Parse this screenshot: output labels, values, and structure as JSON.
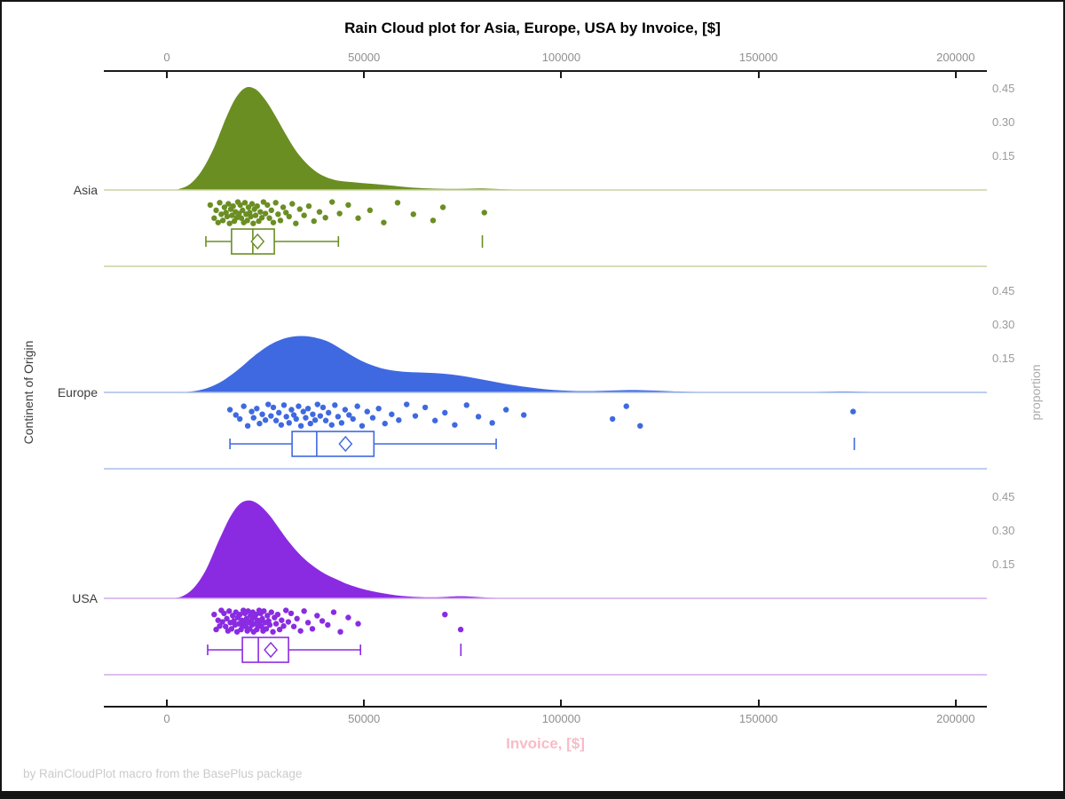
{
  "title": "Rain Cloud plot for Asia, Europe, USA by Invoice, [$]",
  "footer": "by RainCloudPlot macro from the BasePlus package",
  "x_axis": {
    "label": "Invoice, [$]",
    "label_color": "#F8BBC7",
    "ticks": [
      0,
      50000,
      100000,
      150000,
      200000
    ],
    "tick_labels": [
      "0",
      "50000",
      "100000",
      "150000",
      "200000"
    ]
  },
  "y_axis": {
    "label": "Continent of Origin",
    "categories": [
      "Asia",
      "Europe",
      "USA"
    ]
  },
  "proportion_axis": {
    "label": "proportion",
    "ticks": [
      0.45,
      0.3,
      0.15
    ],
    "tick_labels": [
      "0.45",
      "0.30",
      "0.15"
    ]
  },
  "chart_data": {
    "type": "raincloud (half-violin density + jittered scatter + horizontal boxplot)",
    "x_variable": "Invoice, [$]",
    "x_range_shown": [
      0,
      200000
    ],
    "proportion_ticks": [
      0.15,
      0.3,
      0.45
    ],
    "jitter_cycle": [
      0.15,
      0.72,
      0.38,
      0.91,
      0.05,
      0.55,
      0.82,
      0.25,
      0.48,
      0.65,
      0.1,
      0.95,
      0.33,
      0.6,
      0.2,
      0.85,
      0.45,
      0.7,
      0.02,
      0.52
    ],
    "groups": [
      {
        "name": "Asia",
        "color": "#6B8E23",
        "light_color": "#C8D4A2",
        "density": [
          [
            500,
            0
          ],
          [
            3000,
            0.004
          ],
          [
            6000,
            0.028
          ],
          [
            9000,
            0.09
          ],
          [
            12000,
            0.19
          ],
          [
            15000,
            0.32
          ],
          [
            17500,
            0.41
          ],
          [
            20000,
            0.455
          ],
          [
            22500,
            0.448
          ],
          [
            25000,
            0.4
          ],
          [
            27500,
            0.33
          ],
          [
            30000,
            0.252
          ],
          [
            32500,
            0.18
          ],
          [
            35000,
            0.126
          ],
          [
            37500,
            0.086
          ],
          [
            40000,
            0.06
          ],
          [
            42500,
            0.045
          ],
          [
            45000,
            0.038
          ],
          [
            47500,
            0.034
          ],
          [
            50000,
            0.03
          ],
          [
            53000,
            0.026
          ],
          [
            56000,
            0.021
          ],
          [
            59000,
            0.016
          ],
          [
            62000,
            0.011
          ],
          [
            65000,
            0.008
          ],
          [
            68000,
            0.006
          ],
          [
            71000,
            0.005
          ],
          [
            74000,
            0.005
          ],
          [
            77000,
            0.006
          ],
          [
            80000,
            0.007
          ],
          [
            83000,
            0.005
          ],
          [
            86000,
            0.003
          ],
          [
            90000,
            0.001
          ],
          [
            95000,
            0
          ]
        ],
        "points": [
          11000,
          12000,
          12500,
          13000,
          13400,
          13800,
          14200,
          14600,
          15000,
          15300,
          15600,
          15900,
          16200,
          16500,
          16800,
          17100,
          17400,
          17700,
          18000,
          18300,
          18600,
          18900,
          19200,
          19500,
          19800,
          20100,
          20400,
          20700,
          21000,
          21300,
          21600,
          21900,
          22200,
          22500,
          22900,
          23300,
          23700,
          24100,
          24500,
          25000,
          25500,
          26000,
          26500,
          27000,
          27600,
          28200,
          28800,
          29500,
          30200,
          31000,
          31800,
          32700,
          33700,
          34800,
          36000,
          37300,
          38700,
          40200,
          41900,
          43800,
          46000,
          48500,
          51500,
          55000,
          58500,
          62500,
          67500,
          70000,
          80500
        ],
        "box": {
          "whisker_low": 9900,
          "q1": 16400,
          "median": 21800,
          "mean": 23000,
          "q3": 27250,
          "whisker_high": 43500,
          "outliers": [
            80000
          ]
        }
      },
      {
        "name": "Europe",
        "color": "#3F69E0",
        "light_color": "#A9BEEA",
        "density": [
          [
            2000,
            0
          ],
          [
            6000,
            0.004
          ],
          [
            10000,
            0.018
          ],
          [
            14000,
            0.05
          ],
          [
            18000,
            0.1
          ],
          [
            22000,
            0.16
          ],
          [
            26000,
            0.21
          ],
          [
            29000,
            0.235
          ],
          [
            32000,
            0.248
          ],
          [
            35000,
            0.25
          ],
          [
            38000,
            0.242
          ],
          [
            41000,
            0.225
          ],
          [
            44000,
            0.195
          ],
          [
            47000,
            0.163
          ],
          [
            50000,
            0.135
          ],
          [
            53000,
            0.115
          ],
          [
            56000,
            0.101
          ],
          [
            60000,
            0.092
          ],
          [
            64000,
            0.089
          ],
          [
            68000,
            0.086
          ],
          [
            72000,
            0.08
          ],
          [
            76000,
            0.07
          ],
          [
            80000,
            0.057
          ],
          [
            84000,
            0.044
          ],
          [
            88000,
            0.032
          ],
          [
            92000,
            0.022
          ],
          [
            96000,
            0.014
          ],
          [
            100000,
            0.009
          ],
          [
            104000,
            0.006
          ],
          [
            108000,
            0.006
          ],
          [
            112000,
            0.008
          ],
          [
            116000,
            0.01
          ],
          [
            120000,
            0.01
          ],
          [
            124000,
            0.008
          ],
          [
            128000,
            0.005
          ],
          [
            132000,
            0.003
          ],
          [
            136000,
            0.002
          ],
          [
            142000,
            0.001
          ],
          [
            150000,
            0.001
          ],
          [
            158000,
            0.001
          ],
          [
            164000,
            0.002
          ],
          [
            169000,
            0.004
          ],
          [
            174000,
            0.004
          ],
          [
            179000,
            0.002
          ],
          [
            183000,
            0
          ]
        ],
        "points": [
          16000,
          17500,
          18500,
          19500,
          20500,
          21500,
          22000,
          22800,
          23500,
          24200,
          25000,
          25700,
          26400,
          27000,
          27700,
          28400,
          29000,
          29700,
          30300,
          31000,
          31600,
          32200,
          32800,
          33400,
          34000,
          34600,
          35200,
          35800,
          36400,
          37000,
          37600,
          38200,
          38900,
          39600,
          40300,
          41000,
          41800,
          42600,
          43400,
          44300,
          45200,
          46200,
          47200,
          48300,
          49500,
          50800,
          52200,
          53700,
          55300,
          57000,
          58800,
          60800,
          63000,
          65500,
          68000,
          70500,
          73000,
          76000,
          79000,
          82500,
          86000,
          90500,
          113000,
          116500,
          120000,
          174000
        ],
        "box": {
          "whisker_low": 16000,
          "q1": 31750,
          "median": 38000,
          "mean": 45300,
          "q3": 52500,
          "whisker_high": 83500,
          "outliers": [
            174300
          ]
        }
      },
      {
        "name": "USA",
        "color": "#8A2BE2",
        "light_color": "#D2ABEA",
        "density": [
          [
            1000,
            0
          ],
          [
            4000,
            0.01
          ],
          [
            7000,
            0.05
          ],
          [
            10000,
            0.13
          ],
          [
            13000,
            0.25
          ],
          [
            16000,
            0.36
          ],
          [
            18500,
            0.42
          ],
          [
            21000,
            0.435
          ],
          [
            23500,
            0.415
          ],
          [
            26000,
            0.37
          ],
          [
            28500,
            0.31
          ],
          [
            31000,
            0.25
          ],
          [
            34000,
            0.19
          ],
          [
            37000,
            0.145
          ],
          [
            40000,
            0.11
          ],
          [
            43000,
            0.085
          ],
          [
            46000,
            0.062
          ],
          [
            49000,
            0.045
          ],
          [
            52000,
            0.032
          ],
          [
            55000,
            0.022
          ],
          [
            58000,
            0.014
          ],
          [
            61000,
            0.009
          ],
          [
            64000,
            0.006
          ],
          [
            67000,
            0.005
          ],
          [
            70000,
            0.006
          ],
          [
            73000,
            0.009
          ],
          [
            76000,
            0.009
          ],
          [
            79000,
            0.006
          ],
          [
            82000,
            0.003
          ],
          [
            86000,
            0.001
          ],
          [
            90000,
            0
          ]
        ],
        "points": [
          12000,
          12500,
          13000,
          13400,
          13800,
          14100,
          14500,
          14900,
          15200,
          15500,
          15800,
          16100,
          16400,
          16700,
          17000,
          17300,
          17500,
          17800,
          18000,
          18300,
          18500,
          18800,
          19000,
          19200,
          19400,
          19600,
          19800,
          20000,
          20200,
          20400,
          20600,
          20800,
          21000,
          21200,
          21400,
          21600,
          21800,
          22000,
          22200,
          22400,
          22600,
          22800,
          23000,
          23200,
          23400,
          23600,
          23800,
          24000,
          24200,
          24400,
          24600,
          24900,
          25200,
          25500,
          25800,
          26100,
          26500,
          26900,
          27300,
          27700,
          28100,
          28600,
          29100,
          29600,
          30200,
          30800,
          31500,
          32200,
          33000,
          33900,
          34800,
          35800,
          36900,
          38100,
          39400,
          40800,
          42300,
          44000,
          46000,
          48500,
          70500,
          74500
        ],
        "box": {
          "whisker_low": 10350,
          "q1": 19150,
          "median": 23200,
          "mean": 26350,
          "q3": 30850,
          "whisker_high": 49100,
          "outliers": [
            74550
          ]
        }
      }
    ]
  }
}
